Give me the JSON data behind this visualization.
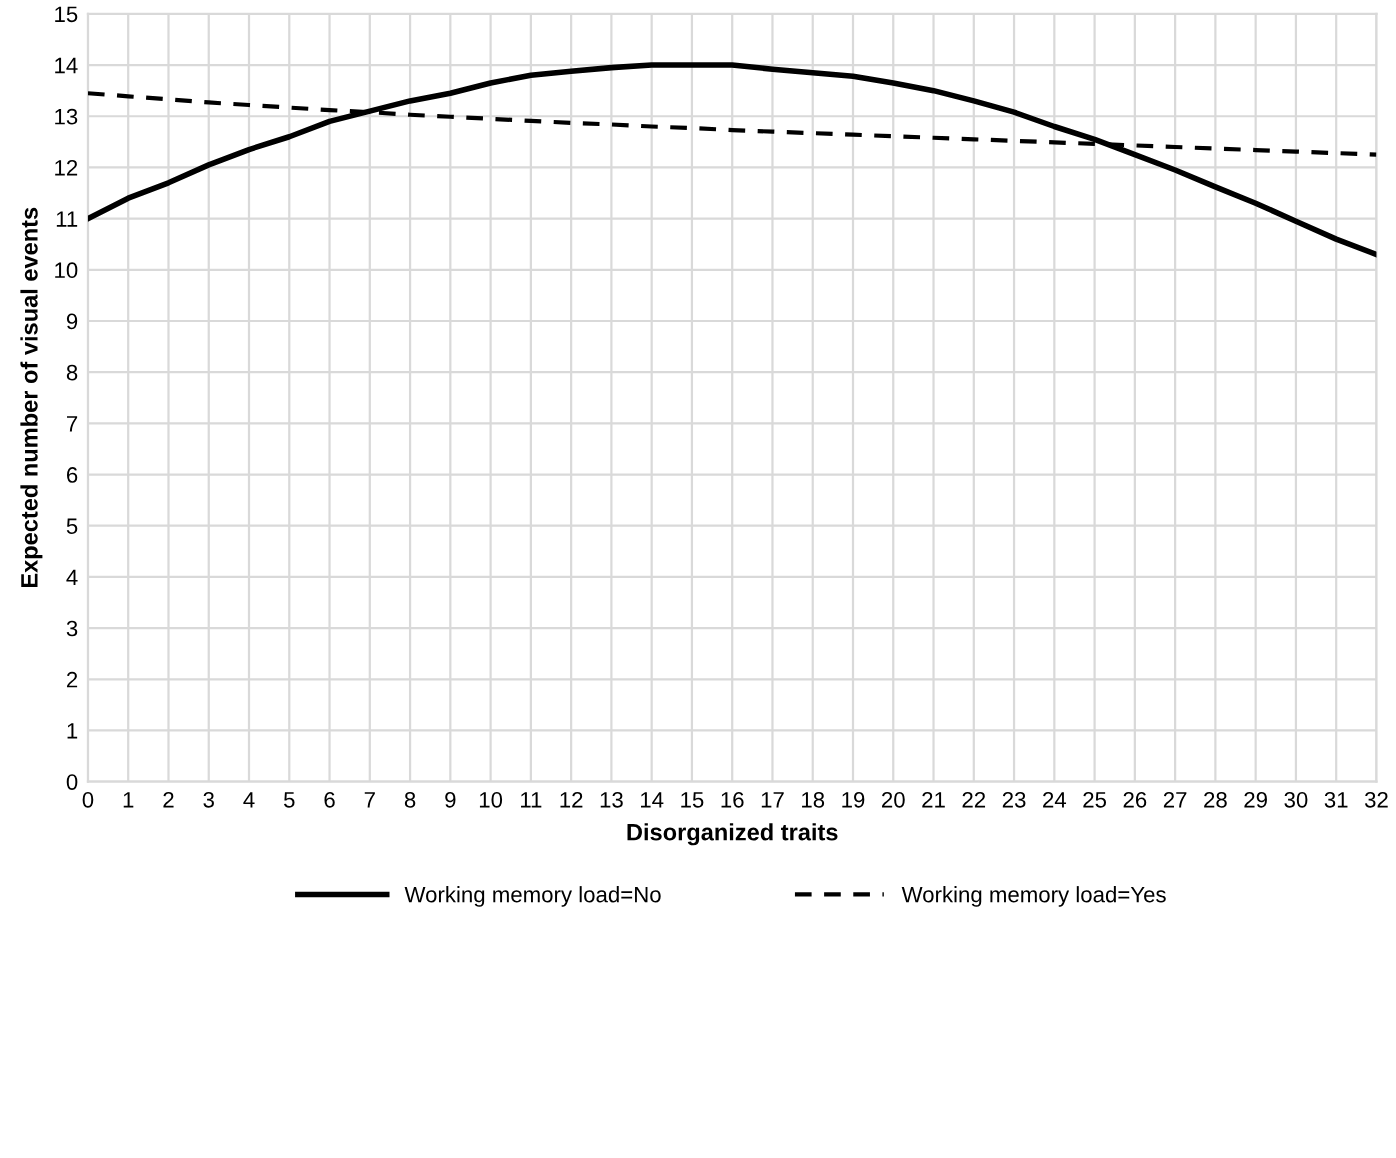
{
  "chart_data": {
    "type": "line",
    "xlabel": "Disorganized traits",
    "ylabel": "Expected number of visual events",
    "x": [
      0,
      1,
      2,
      3,
      4,
      5,
      6,
      7,
      8,
      9,
      10,
      11,
      12,
      13,
      14,
      15,
      16,
      17,
      18,
      19,
      20,
      21,
      22,
      23,
      24,
      25,
      26,
      27,
      28,
      29,
      30,
      31,
      32
    ],
    "series": [
      {
        "name": "Working memory load=No",
        "color": "#000000",
        "line_style": "solid",
        "values": [
          11.0,
          11.4,
          11.7,
          12.05,
          12.35,
          12.6,
          12.9,
          13.1,
          13.3,
          13.45,
          13.65,
          13.8,
          13.88,
          13.95,
          14.0,
          14.0,
          14.0,
          13.92,
          13.85,
          13.78,
          13.65,
          13.5,
          13.3,
          13.08,
          12.8,
          12.55,
          12.25,
          11.95,
          11.62,
          11.3,
          10.95,
          10.6,
          10.3
        ]
      },
      {
        "name": "Working memory load=Yes",
        "color": "#000000",
        "line_style": "dashed",
        "values": [
          13.45,
          13.39,
          13.33,
          13.27,
          13.22,
          13.17,
          13.12,
          13.08,
          13.03,
          12.99,
          12.95,
          12.91,
          12.87,
          12.84,
          12.8,
          12.77,
          12.73,
          12.7,
          12.67,
          12.64,
          12.61,
          12.58,
          12.55,
          12.52,
          12.49,
          12.46,
          12.43,
          12.4,
          12.37,
          12.34,
          12.31,
          12.28,
          12.25
        ]
      }
    ],
    "xlim": [
      0,
      32
    ],
    "xticks": [
      0,
      1,
      2,
      3,
      4,
      5,
      6,
      7,
      8,
      9,
      10,
      11,
      12,
      13,
      14,
      15,
      16,
      17,
      18,
      19,
      20,
      21,
      22,
      23,
      24,
      25,
      26,
      27,
      28,
      29,
      30,
      31,
      32
    ],
    "ylim": [
      0,
      15
    ],
    "yticks": [
      0,
      1,
      2,
      3,
      4,
      5,
      6,
      7,
      8,
      9,
      10,
      11,
      12,
      13,
      14,
      15
    ],
    "grid": true,
    "legend": "bottom",
    "marker": "none"
  }
}
